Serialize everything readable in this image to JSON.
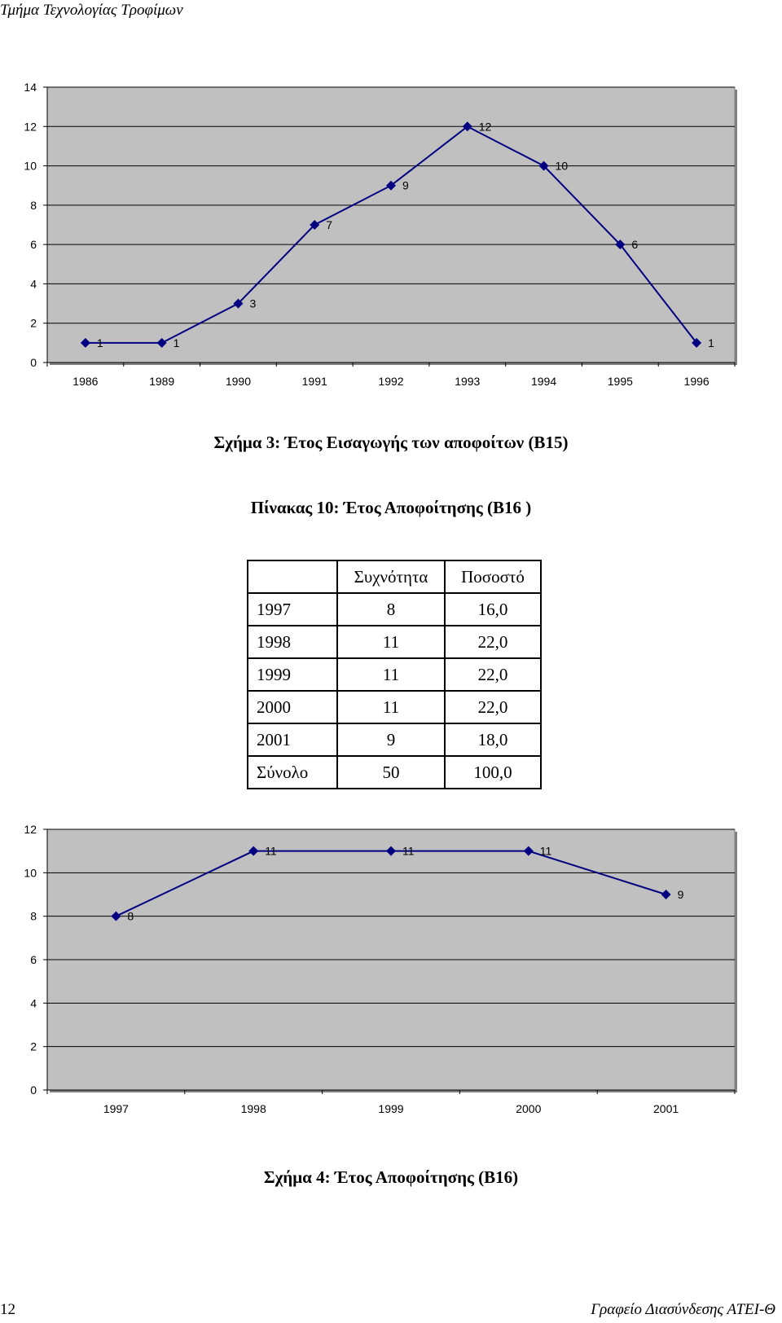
{
  "header": {
    "title": "Τμήμα Τεχνολογίας Τροφίμων"
  },
  "chart_data": [
    {
      "type": "line",
      "categories": [
        "1986",
        "1989",
        "1990",
        "1991",
        "1992",
        "1993",
        "1994",
        "1995",
        "1996"
      ],
      "series": [
        {
          "values": [
            1,
            1,
            3,
            7,
            9,
            12,
            10,
            6,
            1
          ]
        }
      ],
      "yticks": [
        "0",
        "2",
        "4",
        "6",
        "8",
        "10",
        "12",
        "14"
      ],
      "ylim": [
        0,
        14
      ],
      "grid": true,
      "colors": {
        "line": "#000080",
        "plot_bg": "#c0c0c0",
        "grid": "#000000"
      }
    },
    {
      "type": "line",
      "categories": [
        "1997",
        "1998",
        "1999",
        "2000",
        "2001"
      ],
      "series": [
        {
          "values": [
            8,
            11,
            11,
            11,
            9
          ]
        }
      ],
      "yticks": [
        "0",
        "2",
        "4",
        "6",
        "8",
        "10",
        "12"
      ],
      "ylim": [
        0,
        12
      ],
      "grid": true,
      "colors": {
        "line": "#000080",
        "plot_bg": "#c0c0c0",
        "grid": "#000000"
      }
    }
  ],
  "captions": {
    "figure3": "Σχήμα 3: Έτος Εισαγωγής των αποφοίτων (Β15)",
    "table10": "Πίνακας 10: Έτος Αποφοίτησης (Β16 )",
    "figure4": "Σχήμα 4: Έτος Αποφοίτησης (Β16)"
  },
  "table": {
    "headers": [
      "",
      "Συχνότητα",
      "Ποσοστό"
    ],
    "rows": [
      [
        "1997",
        "8",
        "16,0"
      ],
      [
        "1998",
        "11",
        "22,0"
      ],
      [
        "1999",
        "11",
        "22,0"
      ],
      [
        "2000",
        "11",
        "22,0"
      ],
      [
        "2001",
        "9",
        "18,0"
      ],
      [
        "Σύνολο",
        "50",
        "100,0"
      ]
    ]
  },
  "footer": {
    "page_number": "12",
    "office": "Γραφείο Διασύνδεσης ΑΤΕΙ-Θ"
  }
}
